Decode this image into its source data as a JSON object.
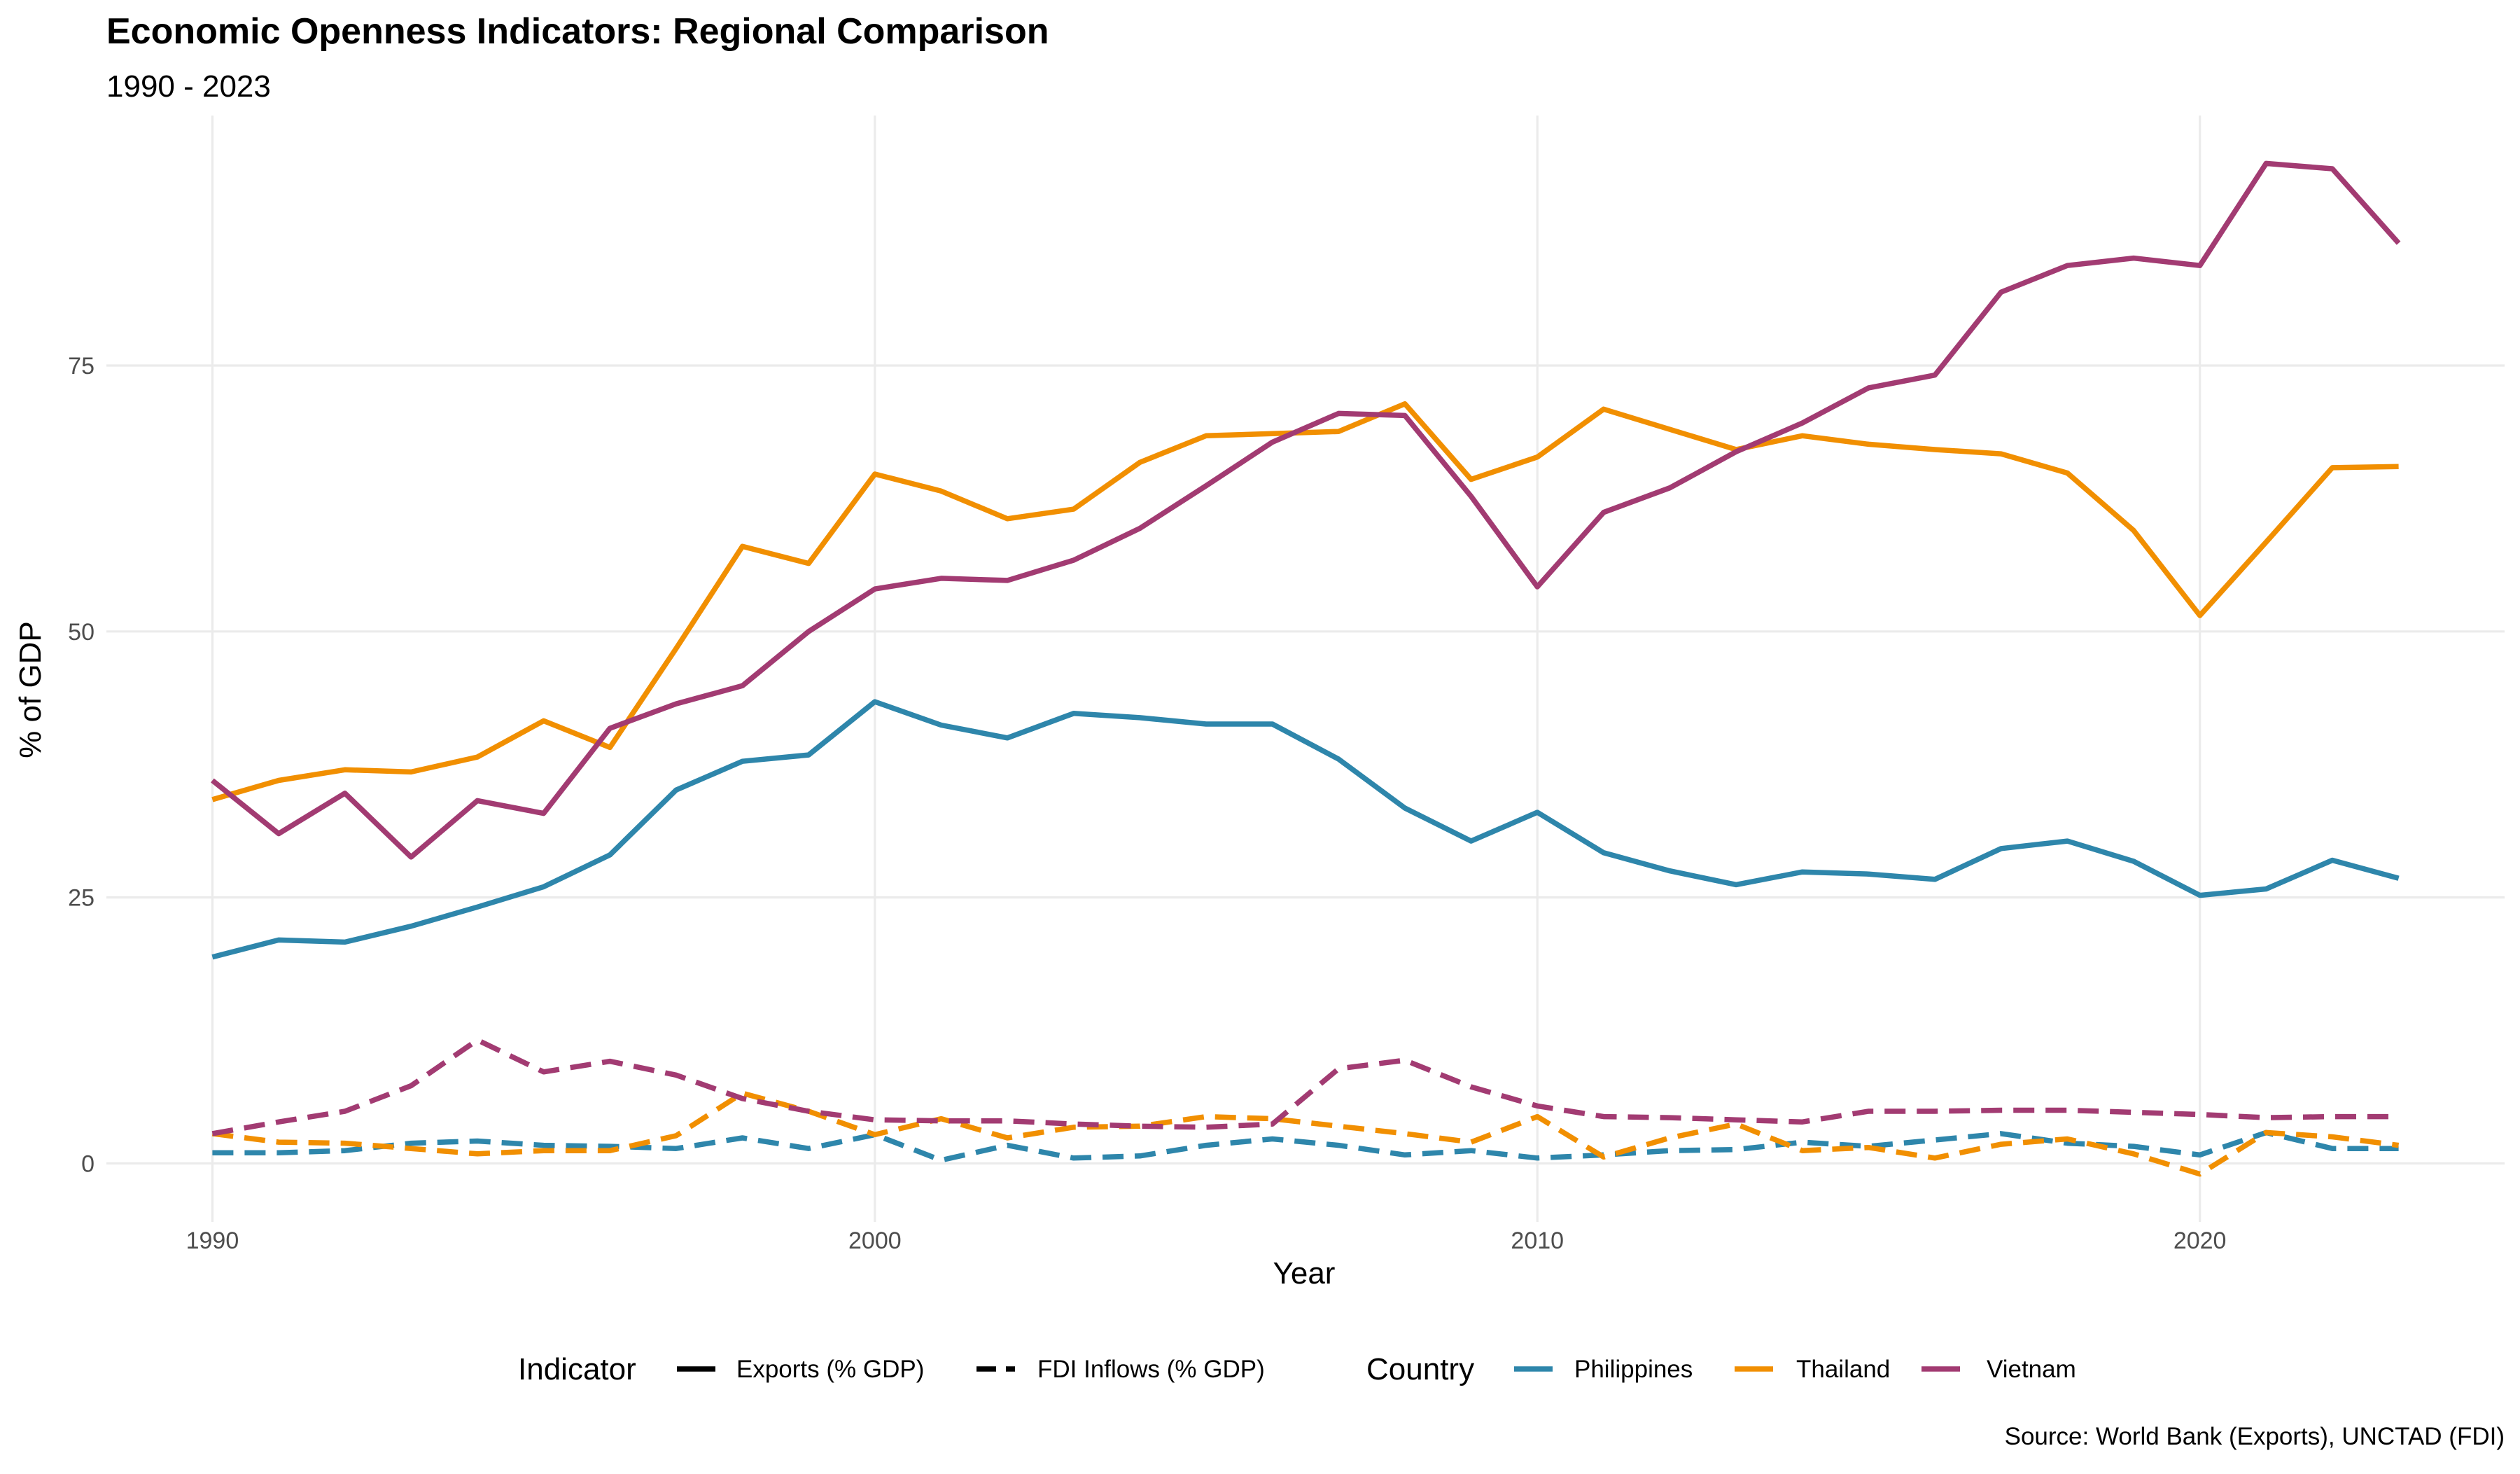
{
  "chart_data": {
    "type": "line",
    "title": "Economic Openness Indicators: Regional Comparison",
    "subtitle": "1990 - 2023",
    "xlabel": "Year",
    "ylabel": "% of GDP",
    "caption": "Source: World Bank (Exports), UNCTAD (FDI)",
    "xlim": [
      1988.4,
      2024.6
    ],
    "ylim": [
      -5.5,
      98.5
    ],
    "x_ticks": [
      1990,
      2000,
      2010,
      2020
    ],
    "y_ticks": [
      0,
      25,
      50,
      75
    ],
    "grid": true,
    "legend_position": "bottom",
    "legend": {
      "indicator_title": "Indicator",
      "indicator_items": [
        {
          "label": "Exports (% GDP)",
          "linetype": "solid"
        },
        {
          "label": "FDI Inflows (% GDP)",
          "linetype": "dashed"
        }
      ],
      "country_title": "Country",
      "country_items": [
        {
          "label": "Philippines",
          "color": "#2E86AB"
        },
        {
          "label": "Thailand",
          "color": "#F18F01"
        },
        {
          "label": "Vietnam",
          "color": "#A23B72"
        }
      ]
    },
    "x": [
      1990,
      1991,
      1992,
      1993,
      1994,
      1995,
      1996,
      1997,
      1998,
      1999,
      2000,
      2001,
      2002,
      2003,
      2004,
      2005,
      2006,
      2007,
      2008,
      2009,
      2010,
      2011,
      2012,
      2013,
      2014,
      2015,
      2016,
      2017,
      2018,
      2019,
      2020,
      2021,
      2022,
      2023
    ],
    "series": [
      {
        "country": "Philippines",
        "indicator": "Exports (% GDP)",
        "color": "#2E86AB",
        "linetype": "solid",
        "values": [
          19.4,
          21.0,
          20.8,
          22.3,
          24.1,
          26.0,
          29.0,
          35.1,
          37.8,
          38.4,
          43.4,
          41.2,
          40.0,
          42.3,
          41.9,
          41.3,
          41.3,
          38.0,
          33.4,
          30.3,
          33.0,
          29.2,
          27.5,
          26.2,
          27.4,
          27.2,
          26.7,
          29.6,
          30.3,
          28.4,
          25.2,
          25.8,
          28.5,
          26.8
        ]
      },
      {
        "country": "Thailand",
        "indicator": "Exports (% GDP)",
        "color": "#F18F01",
        "linetype": "solid",
        "values": [
          34.2,
          36.0,
          37.0,
          36.8,
          38.2,
          41.6,
          39.1,
          48.4,
          58.0,
          56.4,
          64.8,
          63.2,
          60.6,
          61.5,
          65.9,
          68.4,
          68.6,
          68.8,
          71.4,
          64.3,
          66.4,
          70.9,
          69.0,
          67.1,
          68.4,
          67.6,
          67.1,
          66.7,
          64.9,
          59.5,
          51.5,
          58.4,
          65.4,
          65.5
        ]
      },
      {
        "country": "Vietnam",
        "indicator": "Exports (% GDP)",
        "color": "#A23B72",
        "linetype": "solid",
        "values": [
          36.0,
          31.0,
          34.8,
          28.8,
          34.1,
          32.9,
          40.9,
          43.2,
          44.9,
          50.0,
          54.0,
          55.0,
          54.8,
          56.7,
          59.7,
          63.7,
          67.8,
          70.5,
          70.3,
          62.7,
          54.2,
          61.2,
          63.5,
          66.9,
          69.6,
          72.9,
          74.1,
          81.9,
          84.4,
          85.1,
          84.4,
          94.0,
          93.5,
          86.5
        ]
      },
      {
        "country": "Philippines",
        "indicator": "FDI Inflows (% GDP)",
        "color": "#2E86AB",
        "linetype": "dashed",
        "values": [
          1.0,
          1.0,
          1.2,
          1.9,
          2.1,
          1.7,
          1.6,
          1.4,
          2.4,
          1.4,
          2.7,
          0.3,
          1.7,
          0.5,
          0.7,
          1.7,
          2.3,
          1.7,
          0.8,
          1.2,
          0.5,
          0.8,
          1.2,
          1.3,
          2.0,
          1.6,
          2.2,
          2.8,
          1.9,
          1.6,
          0.8,
          2.9,
          1.4,
          1.4
        ]
      },
      {
        "country": "Thailand",
        "indicator": "FDI Inflows (% GDP)",
        "color": "#F18F01",
        "linetype": "dashed",
        "values": [
          2.8,
          2.0,
          1.9,
          1.4,
          0.9,
          1.2,
          1.2,
          2.6,
          6.6,
          4.9,
          2.7,
          4.2,
          2.4,
          3.4,
          3.5,
          4.4,
          4.2,
          3.5,
          2.8,
          2.0,
          4.4,
          0.6,
          2.4,
          3.7,
          1.2,
          1.5,
          0.5,
          1.8,
          2.3,
          0.9,
          -1.0,
          2.9,
          2.5,
          1.7
        ]
      },
      {
        "country": "Vietnam",
        "indicator": "FDI Inflows (% GDP)",
        "color": "#A23B72",
        "linetype": "dashed",
        "values": [
          2.8,
          3.9,
          4.9,
          7.3,
          11.6,
          8.6,
          9.6,
          8.3,
          6.1,
          4.9,
          4.1,
          4.0,
          4.0,
          3.7,
          3.5,
          3.4,
          3.7,
          8.9,
          9.7,
          7.2,
          5.4,
          4.4,
          4.3,
          4.1,
          3.9,
          4.9,
          4.9,
          5.0,
          5.0,
          4.8,
          4.6,
          4.3,
          4.4,
          4.4
        ]
      }
    ]
  }
}
